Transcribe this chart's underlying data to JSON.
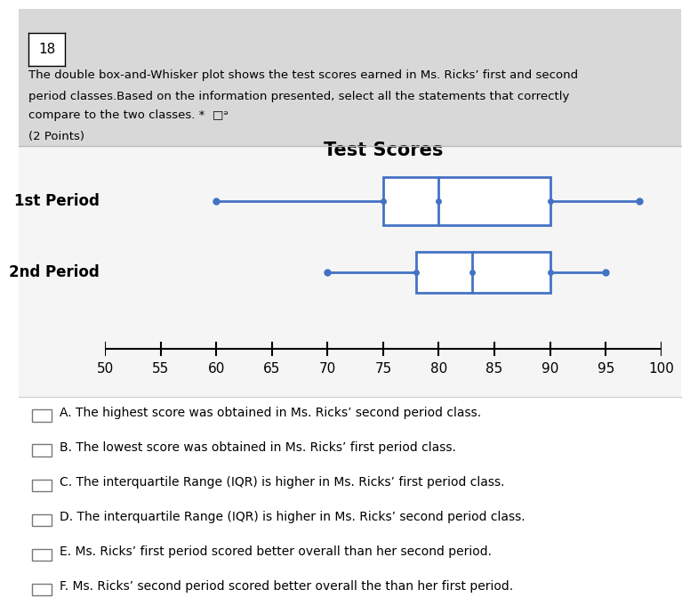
{
  "title": "Test Scores",
  "period1": {
    "label": "1st Period",
    "min": 60,
    "q1": 75,
    "median": 80,
    "q3": 90,
    "max": 98
  },
  "period2": {
    "label": "2nd Period",
    "min": 70,
    "q1": 78,
    "median": 83,
    "q3": 90,
    "max": 95
  },
  "xmin": 50,
  "xmax": 100,
  "xticks": [
    50,
    55,
    60,
    65,
    70,
    75,
    80,
    85,
    90,
    95,
    100
  ],
  "box_color": "#4472C4",
  "background_color": "#FFFFFF",
  "header_bg": "#D8D8D8",
  "chart_bg": "#F0F0F0",
  "title_fontsize": 15,
  "label_fontsize": 12,
  "tick_fontsize": 11,
  "option_fontsize": 10,
  "options": [
    "A. The highest score was obtained in Ms. Ricks’ second period class.",
    "B. The lowest score was obtained in Ms. Ricks’ first period class.",
    "C. The interquartile Range (IQR) is higher in Ms. Ricks’ first period class.",
    "D. The interquartile Range (IQR) is higher in Ms. Ricks’ second period class.",
    "E. Ms. Ricks’ first period scored better overall than her second period.",
    "F. Ms. Ricks’ second period scored better overall the than her first period."
  ],
  "question_num": "18",
  "header_line1": "The double box-and-Whisker plot shows the test scores earned in Ms. Ricks’ first and second",
  "header_line2": "period classes.Based on the information presented, select all the statements that correctly",
  "header_line3": "compare to the two classes. *  □ᵊ",
  "header_line4": "(2 Points)"
}
